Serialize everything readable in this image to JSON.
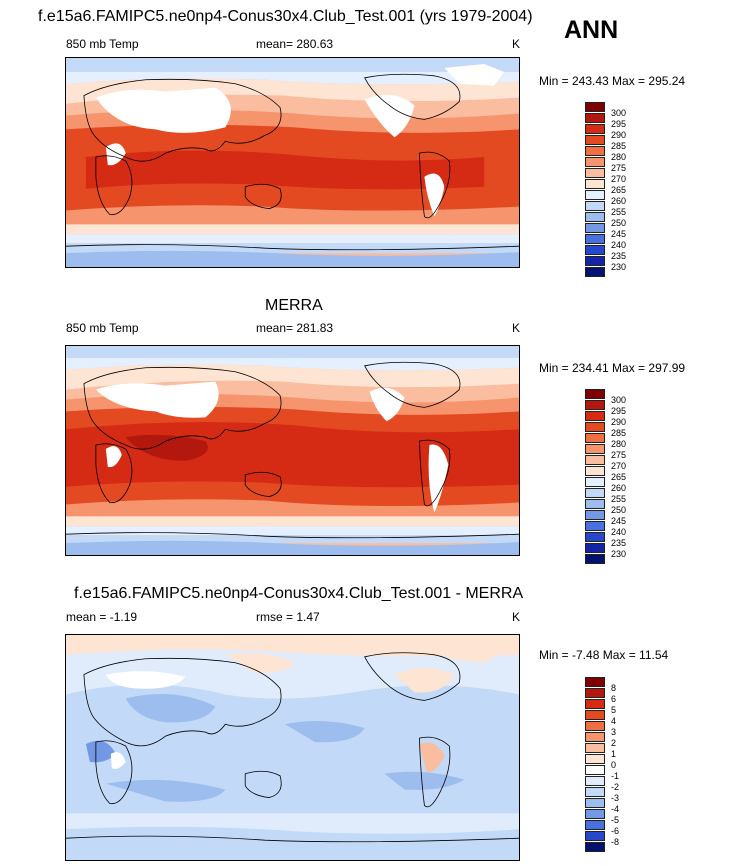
{
  "top": {
    "title": "f.e15a6.FAMIPC5.ne0np4-Conus30x4.Club_Test.001 (yrs 1979-2004)",
    "variable": "850 mb Temp",
    "mean": "mean= 280.63",
    "units": "K",
    "minmax": "Min = 243.43 Max = 295.24"
  },
  "season": "ANN",
  "middle": {
    "title": "MERRA",
    "variable": "850 mb Temp",
    "mean": "mean= 281.83",
    "units": "K",
    "minmax": "Min = 234.41 Max = 297.99"
  },
  "bottom": {
    "title": "f.e15a6.FAMIPC5.ne0np4-Conus30x4.Club_Test.001 - MERRA",
    "mean": "mean =  -1.19",
    "rmse": "rmse =   1.47",
    "units": "K",
    "minmax": "Min =  -7.48 Max =  11.54"
  },
  "abs_colorbar": {
    "labels": [
      "300",
      "295",
      "290",
      "285",
      "280",
      "275",
      "270",
      "265",
      "260",
      "255",
      "250",
      "245",
      "240",
      "235",
      "230"
    ],
    "colors": [
      "#7f0000",
      "#b2180d",
      "#d52a14",
      "#e34a22",
      "#ef6f45",
      "#f6956d",
      "#fbbd9f",
      "#fde4d3",
      "#e4efff",
      "#c2d9f7",
      "#9dbdef",
      "#7398e6",
      "#4970df",
      "#2748cc",
      "#1325a6",
      "#03116f"
    ]
  },
  "diff_colorbar": {
    "labels": [
      "8",
      "6",
      "5",
      "4",
      "3",
      "2",
      "1",
      "0",
      "-1",
      "-2",
      "-3",
      "-4",
      "-5",
      "-6",
      "-8"
    ],
    "colors": [
      "#7f0000",
      "#b2180d",
      "#d52a14",
      "#e34a22",
      "#ef6f45",
      "#f6956d",
      "#fbbd9f",
      "#fde4d3",
      "#ffffff",
      "#e0ecfc",
      "#c2d9f7",
      "#9dbdef",
      "#7398e6",
      "#4970df",
      "#2748cc",
      "#03116f"
    ]
  }
}
